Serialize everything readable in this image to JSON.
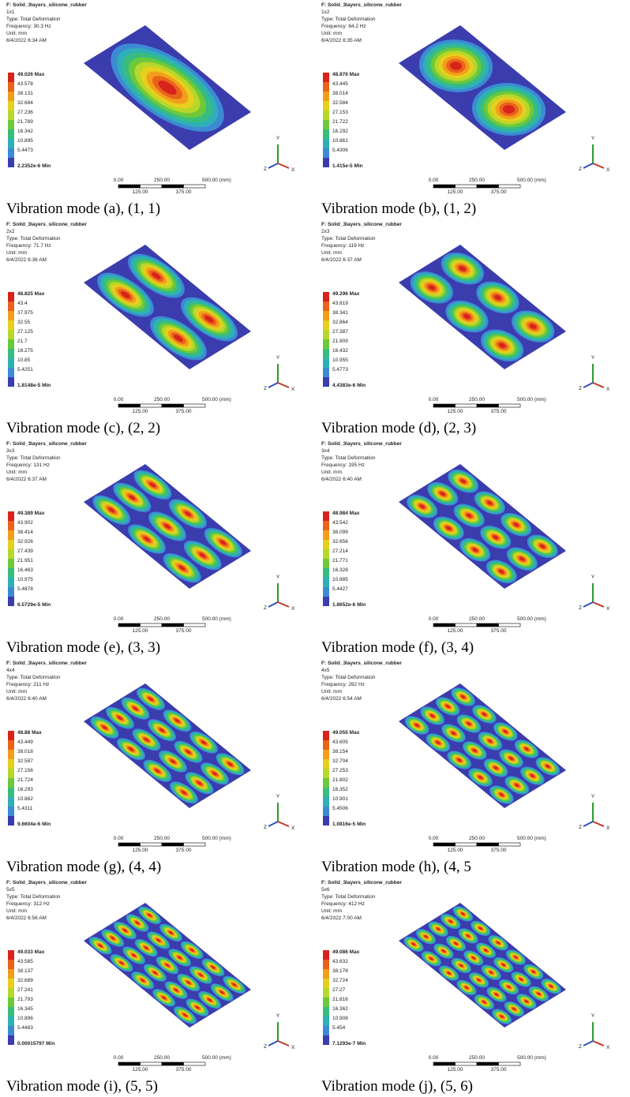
{
  "panels": [
    {
      "title": "F: Solid_3layers_silicone_rubber",
      "mode": "1x1",
      "type": "Type: Total Deformation",
      "frequency": "Frequency: 30.3 Hz",
      "unit": "Unit: mm",
      "date": "6/4/2022 6:34 AM",
      "legend": [
        "49.026 Max",
        "43.578",
        "38.131",
        "32.684",
        "27.236",
        "21.789",
        "16.342",
        "10.895",
        "5.4473",
        "2.2352e-6 Min"
      ],
      "caption": "Vibration mode (a), (1, 1)"
    },
    {
      "title": "F: Solid_3layers_silicone_rubber",
      "mode": "1x2",
      "type": "Type: Total Deformation",
      "frequency": "Frequency: 64.2 Hz",
      "unit": "Unit: mm",
      "date": "6/4/2022 6:35 AM",
      "legend": [
        "48.876 Max",
        "43.445",
        "38.014",
        "32.584",
        "27.153",
        "21.722",
        "16.292",
        "10.861",
        "5.4306",
        "1.415e-5 Min"
      ],
      "caption": "Vibration mode (b), (1, 2)"
    },
    {
      "title": "F: Solid_3layers_silicone_rubber",
      "mode": "2x2",
      "type": "Type: Total Deformation",
      "frequency": "Frequency: 71.7 Hz",
      "unit": "Unit: mm",
      "date": "6/4/2022 6:36 AM",
      "legend": [
        "48.825 Max",
        "43.4",
        "37.975",
        "32.55",
        "27.125",
        "21.7",
        "16.275",
        "10.85",
        "5.4251",
        "1.8148e-5 Min"
      ],
      "caption": "Vibration mode (c), (2, 2)"
    },
    {
      "title": "F: Solid_3layers_silicone_rubber",
      "mode": "2x3",
      "type": "Type: Total Deformation",
      "frequency": "Frequency: 119 Hz",
      "unit": "Unit: mm",
      "date": "6/4/2022 6:37 AM",
      "legend": [
        "49.296 Max",
        "43.819",
        "38.341",
        "32.864",
        "27.387",
        "21.909",
        "16.432",
        "10.955",
        "5.4773",
        "4.4383e-6 Min"
      ],
      "caption": "Vibration mode (d), (2, 3)"
    },
    {
      "title": "F: Solid_3layers_silicone_rubber",
      "mode": "3x3",
      "type": "Type: Total Deformation",
      "frequency": "Frequency: 131 Hz",
      "unit": "Unit: mm",
      "date": "6/4/2022 6:37 AM",
      "legend": [
        "49.389 Max",
        "43.902",
        "38.414",
        "32.926",
        "27.439",
        "21.951",
        "16.463",
        "10.975",
        "5.4878",
        "6.5729e-5 Min"
      ],
      "caption": "Vibration mode (e), (3, 3)"
    },
    {
      "title": "F: Solid_3layers_silicone_rubber",
      "mode": "3x4",
      "type": "Type: Total Deformation",
      "frequency": "Frequency: 195 Hz",
      "unit": "Unit: mm",
      "date": "6/4/2022 6:40 AM",
      "legend": [
        "48.984 Max",
        "43.542",
        "38.099",
        "32.656",
        "27.214",
        "21.771",
        "16.328",
        "10.885",
        "5.4427",
        "1.8652e-6 Min"
      ],
      "caption": "Vibration mode (f), (3, 4)"
    },
    {
      "title": "F: Solid_3layers_silicone_rubber",
      "mode": "4x4",
      "type": "Type: Total Deformation",
      "frequency": "Frequency: 211 Hz",
      "unit": "Unit: mm",
      "date": "6/4/2022 6:40 AM",
      "legend": [
        "48.88 Max",
        "43.449",
        "38.018",
        "32.587",
        "27.156",
        "21.724",
        "16.293",
        "10.862",
        "5.4311",
        "9.6604e-6 Min"
      ],
      "caption": "Vibration mode (g), (4, 4)"
    },
    {
      "title": "F: Solid_3layers_silicone_rubber",
      "mode": "4x5",
      "type": "Type: Total Deformation",
      "frequency": "Frequency: 292 Hz",
      "unit": "Unit: mm",
      "date": "6/4/2022 6:54 AM",
      "legend": [
        "49.055 Max",
        "43.605",
        "38.154",
        "32.704",
        "27.253",
        "21.802",
        "16.352",
        "10.901",
        "5.4506",
        "1.0816e-5 Min"
      ],
      "caption": "Vibration mode (h), (4, 5"
    },
    {
      "title": "F: Solid_3layers_silicone_rubber",
      "mode": "5x5",
      "type": "Type: Total Deformation",
      "frequency": "Frequency: 312 Hz",
      "unit": "Unit: mm",
      "date": "6/4/2022 6:56 AM",
      "legend": [
        "49.033 Max",
        "43.585",
        "38.137",
        "32.689",
        "27.241",
        "21.793",
        "16.345",
        "10.896",
        "5.4483",
        "0.00015797 Min"
      ],
      "caption": "Vibration mode (i), (5, 5)"
    },
    {
      "title": "F: Solid_3layers_silicone_rubber",
      "mode": "5x6",
      "type": "Type: Total Deformation",
      "frequency": "Frequency: 412 Hz",
      "unit": "Unit: mm",
      "date": "6/4/2022 7:00 AM",
      "legend": [
        "49.086 Max",
        "43.632",
        "38.178",
        "32.724",
        "27.27",
        "21.816",
        "16.362",
        "10.908",
        "5.454",
        "7.1293e-7 Min"
      ],
      "caption": "Vibration mode (j), (5, 6)"
    }
  ],
  "scale_bar": {
    "labels": [
      "0.00",
      "250.00",
      "500.00 (mm)",
      "125.00",
      "375.00"
    ]
  },
  "triad": {
    "labels": [
      "Y",
      "Z",
      "X"
    ]
  }
}
